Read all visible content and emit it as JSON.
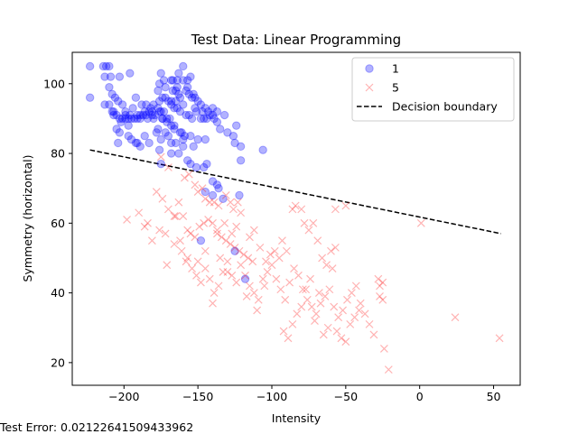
{
  "chart_data": {
    "type": "scatter",
    "title": "Test Data: Linear Programming",
    "xlabel": "Intensity",
    "ylabel": "Symmetry (horizontal)",
    "xlim": [
      -235,
      68
    ],
    "ylim": [
      13.5,
      109
    ],
    "xticks": [
      -200,
      -150,
      -100,
      -50,
      0,
      50
    ],
    "yticks": [
      20,
      40,
      60,
      80,
      100
    ],
    "grid": false,
    "legend_position": "top-right",
    "series": [
      {
        "name": "1",
        "marker": "circle",
        "color": "#0000ff",
        "points": [
          [
            -223,
            105
          ],
          [
            -214,
            105
          ],
          [
            -213,
            102
          ],
          [
            -210,
            99
          ],
          [
            -208,
            97
          ],
          [
            -206,
            96
          ],
          [
            -204,
            95
          ],
          [
            -201,
            94
          ],
          [
            -199,
            92
          ],
          [
            -196,
            91
          ],
          [
            -194,
            93
          ],
          [
            -191,
            90
          ],
          [
            -189,
            91
          ],
          [
            -186,
            92
          ],
          [
            -184,
            90
          ],
          [
            -181,
            91
          ],
          [
            -179,
            91
          ],
          [
            -177,
            93
          ],
          [
            -223,
            96
          ],
          [
            -210,
            94
          ],
          [
            -207,
            92
          ],
          [
            -205,
            91
          ],
          [
            -203,
            90
          ],
          [
            -201,
            90
          ],
          [
            -199,
            90
          ],
          [
            -197,
            90
          ],
          [
            -195,
            90
          ],
          [
            -193,
            90
          ],
          [
            -191,
            91
          ],
          [
            -189,
            90
          ],
          [
            -187,
            91
          ],
          [
            -185,
            91
          ],
          [
            -183,
            92
          ],
          [
            -181,
            92
          ],
          [
            -212,
            105
          ],
          [
            -210,
            105
          ],
          [
            -209,
            102
          ],
          [
            -203,
            102
          ],
          [
            -196,
            103
          ],
          [
            -192,
            96
          ],
          [
            -188,
            94
          ],
          [
            -185,
            94
          ],
          [
            -182,
            93
          ],
          [
            -180,
            94
          ],
          [
            -180,
            90
          ],
          [
            -176,
            92
          ],
          [
            -174,
            90
          ],
          [
            -177,
            87
          ],
          [
            -174,
            90
          ],
          [
            -171,
            89
          ],
          [
            -168,
            95
          ],
          [
            -167,
            101
          ],
          [
            -165,
            98
          ],
          [
            -168,
            101
          ],
          [
            -163,
            103
          ],
          [
            -160,
            105
          ],
          [
            -160,
            101
          ],
          [
            -164,
            101
          ],
          [
            -164,
            99
          ],
          [
            -163,
            97
          ],
          [
            -157,
            99
          ],
          [
            -157,
            101
          ],
          [
            -155,
            102
          ],
          [
            -153,
            97
          ],
          [
            -152,
            96
          ],
          [
            -150,
            95
          ],
          [
            -148,
            94
          ],
          [
            -147,
            92
          ],
          [
            -145,
            93
          ],
          [
            -143,
            92
          ],
          [
            -140,
            91
          ],
          [
            -137,
            92
          ],
          [
            -175,
            103
          ],
          [
            -173,
            101
          ],
          [
            -172,
            99
          ],
          [
            -172,
            96
          ],
          [
            -170,
            95
          ],
          [
            -168,
            94
          ],
          [
            -166,
            93
          ],
          [
            -164,
            93
          ],
          [
            -162,
            92
          ],
          [
            -160,
            94
          ],
          [
            -158,
            91
          ],
          [
            -156,
            91
          ],
          [
            -154,
            90
          ],
          [
            -177,
            98
          ],
          [
            -176,
            95
          ],
          [
            -175,
            92
          ],
          [
            -173,
            92
          ],
          [
            -171,
            90
          ],
          [
            -169,
            90
          ],
          [
            -168,
            88
          ],
          [
            -166,
            88
          ],
          [
            -161,
            86
          ],
          [
            -159,
            85
          ],
          [
            -155,
            85
          ],
          [
            -153,
            82
          ],
          [
            -150,
            84
          ],
          [
            -145,
            84
          ],
          [
            -176,
            100
          ],
          [
            -174,
            96
          ],
          [
            -167,
            98
          ],
          [
            -165,
            95
          ],
          [
            -162,
            96
          ],
          [
            -158,
            98
          ],
          [
            -156,
            97
          ],
          [
            -154,
            96
          ],
          [
            -152,
            93
          ],
          [
            -151,
            92
          ],
          [
            -148,
            90
          ],
          [
            -146,
            90
          ],
          [
            -144,
            90
          ],
          [
            -142,
            91
          ],
          [
            -140,
            93
          ],
          [
            -139,
            90
          ],
          [
            -137,
            89
          ],
          [
            -135,
            87
          ],
          [
            -132,
            91
          ],
          [
            -130,
            86
          ],
          [
            -126,
            85
          ],
          [
            -125,
            83
          ],
          [
            -124,
            88
          ],
          [
            -121,
            82
          ],
          [
            -121,
            78
          ],
          [
            -106,
            81
          ],
          [
            -207,
            91
          ],
          [
            -205,
            87
          ],
          [
            -203,
            86
          ],
          [
            -202,
            89
          ],
          [
            -199,
            91
          ],
          [
            -197,
            88
          ],
          [
            -197,
            85
          ],
          [
            -195,
            84
          ],
          [
            -191,
            83
          ],
          [
            -189,
            82
          ],
          [
            -186,
            85
          ],
          [
            -183,
            83
          ],
          [
            -175,
            84
          ],
          [
            -170,
            85
          ],
          [
            -168,
            83
          ],
          [
            -165,
            83
          ],
          [
            -163,
            80
          ],
          [
            -160,
            82
          ],
          [
            -213,
            94
          ],
          [
            -208,
            92
          ],
          [
            -204,
            83
          ],
          [
            -192,
            83
          ],
          [
            -178,
            86
          ],
          [
            -172,
            86
          ],
          [
            -166,
            87
          ],
          [
            -162,
            86
          ],
          [
            -160,
            84
          ],
          [
            -157,
            78
          ],
          [
            -155,
            77
          ],
          [
            -151,
            76
          ],
          [
            -146,
            76
          ],
          [
            -144,
            77
          ],
          [
            -140,
            72
          ],
          [
            -137,
            71
          ],
          [
            -136,
            70
          ],
          [
            -145,
            69
          ],
          [
            -140,
            68
          ],
          [
            -133,
            67
          ],
          [
            -122,
            68
          ],
          [
            -148,
            55
          ],
          [
            -125,
            52
          ],
          [
            -118,
            44
          ],
          [
            -175,
            77
          ],
          [
            -176,
            81
          ],
          [
            -168,
            80
          ]
        ]
      },
      {
        "name": "5",
        "marker": "x",
        "color": "#ff0000",
        "points": [
          [
            -175,
            79
          ],
          [
            -170,
            76
          ],
          [
            -159,
            73
          ],
          [
            -156,
            74
          ],
          [
            -152,
            71
          ],
          [
            -150,
            69
          ],
          [
            -147,
            70
          ],
          [
            -145,
            67
          ],
          [
            -142,
            66
          ],
          [
            -139,
            66
          ],
          [
            -136,
            65
          ],
          [
            -131,
            68
          ],
          [
            -128,
            66
          ],
          [
            -126,
            64
          ],
          [
            -123,
            66
          ],
          [
            -121,
            63
          ],
          [
            -178,
            69
          ],
          [
            -174,
            67
          ],
          [
            -170,
            64
          ],
          [
            -166,
            62
          ],
          [
            -163,
            66
          ],
          [
            -160,
            62
          ],
          [
            -157,
            58
          ],
          [
            -155,
            57
          ],
          [
            -152,
            56
          ],
          [
            -149,
            59
          ],
          [
            -146,
            60
          ],
          [
            -143,
            61
          ],
          [
            -140,
            60
          ],
          [
            -137,
            58
          ],
          [
            -134,
            56
          ],
          [
            -131,
            55
          ],
          [
            -128,
            54
          ],
          [
            -125,
            53
          ],
          [
            -122,
            52
          ],
          [
            -119,
            51
          ],
          [
            -116,
            50
          ],
          [
            -113,
            49
          ],
          [
            -198,
            61
          ],
          [
            -190,
            63
          ],
          [
            -184,
            60
          ],
          [
            -181,
            55
          ],
          [
            -176,
            58
          ],
          [
            -172,
            57
          ],
          [
            -165,
            62
          ],
          [
            -162,
            55
          ],
          [
            -157,
            50
          ],
          [
            -154,
            47
          ],
          [
            -151,
            45
          ],
          [
            -148,
            43
          ],
          [
            -145,
            47
          ],
          [
            -142,
            44
          ],
          [
            -139,
            40
          ],
          [
            -136,
            42
          ],
          [
            -133,
            46
          ],
          [
            -130,
            49
          ],
          [
            -127,
            45
          ],
          [
            -124,
            43
          ],
          [
            -121,
            48
          ],
          [
            -118,
            45
          ],
          [
            -115,
            42
          ],
          [
            -112,
            40
          ],
          [
            -109,
            38
          ],
          [
            -106,
            44
          ],
          [
            -103,
            46
          ],
          [
            -100,
            48
          ],
          [
            -97,
            44
          ],
          [
            -94,
            41
          ],
          [
            -91,
            38
          ],
          [
            -88,
            43
          ],
          [
            -85,
            47
          ],
          [
            -82,
            45
          ],
          [
            -79,
            41
          ],
          [
            -76,
            38
          ],
          [
            -73,
            36
          ],
          [
            -70,
            34
          ],
          [
            -67,
            37
          ],
          [
            -64,
            39
          ],
          [
            -61,
            41
          ],
          [
            -58,
            36
          ],
          [
            -55,
            33
          ],
          [
            -52,
            35
          ],
          [
            -49,
            38
          ],
          [
            -46,
            40
          ],
          [
            -43,
            42
          ],
          [
            -40,
            37
          ],
          [
            -37,
            34
          ],
          [
            -34,
            31
          ],
          [
            -31,
            28
          ],
          [
            -28,
            44
          ],
          [
            -25,
            43
          ],
          [
            -186,
            59
          ],
          [
            -171,
            48
          ],
          [
            -166,
            54
          ],
          [
            -161,
            52
          ],
          [
            -158,
            49
          ],
          [
            -140,
            37
          ],
          [
            -135,
            50
          ],
          [
            -130,
            46
          ],
          [
            -117,
            39
          ],
          [
            -110,
            35
          ],
          [
            -105,
            42
          ],
          [
            -98,
            52
          ],
          [
            -95,
            50
          ],
          [
            -92,
            29
          ],
          [
            -89,
            27
          ],
          [
            -86,
            31
          ],
          [
            -83,
            34
          ],
          [
            -80,
            36
          ],
          [
            -77,
            41
          ],
          [
            -74,
            44
          ],
          [
            -71,
            32
          ],
          [
            -68,
            40
          ],
          [
            -65,
            28
          ],
          [
            -62,
            30
          ],
          [
            -59,
            47
          ],
          [
            -56,
            29
          ],
          [
            -53,
            27
          ],
          [
            -50,
            26
          ],
          [
            -47,
            31
          ],
          [
            -44,
            33
          ],
          [
            -41,
            35
          ],
          [
            -150,
            49
          ],
          [
            -145,
            52
          ],
          [
            -137,
            57
          ],
          [
            -132,
            60
          ],
          [
            -127,
            57
          ],
          [
            -124,
            59
          ],
          [
            -115,
            56
          ],
          [
            -112,
            58
          ],
          [
            -108,
            53
          ],
          [
            -104,
            49
          ],
          [
            -101,
            51
          ],
          [
            -93,
            55
          ],
          [
            -90,
            52
          ],
          [
            -86,
            64
          ],
          [
            -84,
            65
          ],
          [
            -80,
            64
          ],
          [
            -78,
            60
          ],
          [
            -75,
            58
          ],
          [
            -72,
            60
          ],
          [
            -69,
            55
          ],
          [
            -66,
            50
          ],
          [
            -63,
            48
          ],
          [
            -60,
            52
          ],
          [
            -57,
            53
          ],
          [
            -50,
            65
          ],
          [
            -57,
            64
          ],
          [
            -27,
            39
          ],
          [
            -25,
            38
          ],
          [
            -24,
            24
          ],
          [
            -21,
            18
          ],
          [
            -27,
            42
          ],
          [
            1,
            60
          ],
          [
            24,
            33
          ],
          [
            54,
            27
          ]
        ]
      }
    ],
    "boundary": {
      "name": "Decision boundary",
      "x": [
        -223,
        55
      ],
      "y": [
        81,
        57
      ]
    }
  },
  "footer": {
    "text": "Test Error: 0.02122641509433962"
  }
}
